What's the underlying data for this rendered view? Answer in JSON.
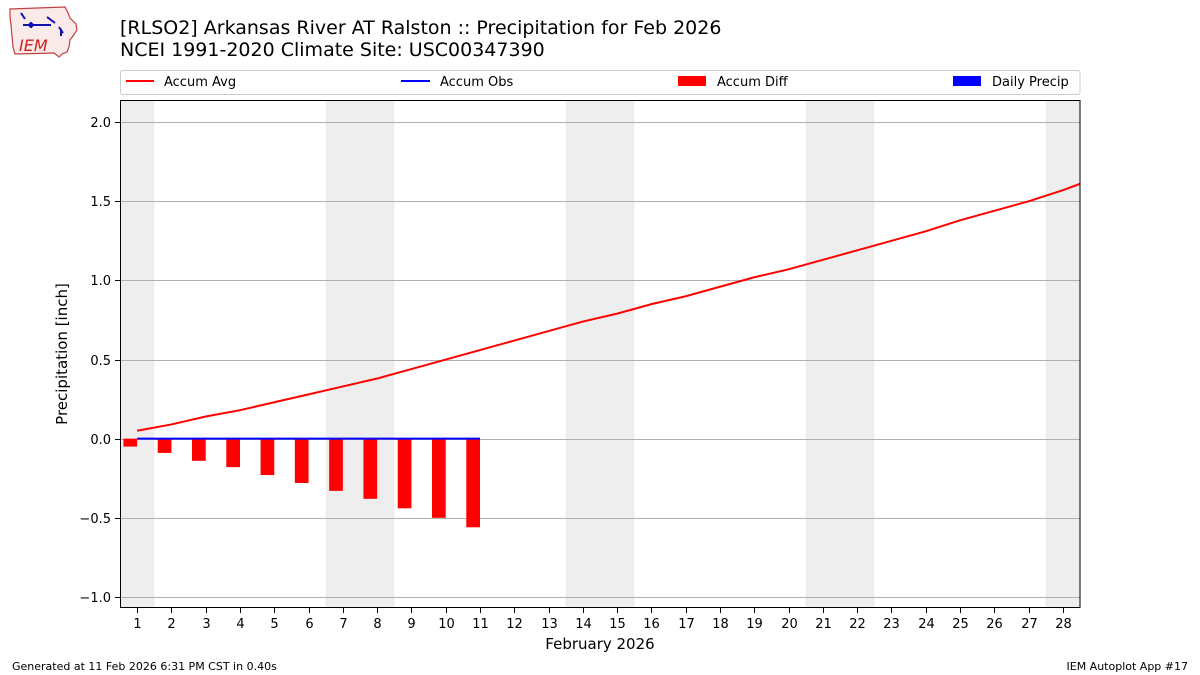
{
  "header": {
    "title_line1": "[RLSO2] Arkansas River  AT Ralston :: Precipitation for Feb 2026",
    "title_line2": "NCEI 1991-2020 Climate Site: USC00347390"
  },
  "logo": {
    "text": "IEM"
  },
  "footer": {
    "generated": "Generated at 11 Feb 2026 6:31 PM CST in 0.40s",
    "app": "IEM Autoplot App #17"
  },
  "colors": {
    "accum_avg": "#ff0000",
    "accum_obs": "#0000ff",
    "accum_diff": "#ff0000",
    "daily_precip": "#0000ff",
    "weekend_shade": "#eeeeee",
    "grid": "#b0b0b0"
  },
  "chart_data": {
    "type": "bar+line",
    "title": "[RLSO2] Arkansas River  AT Ralston :: Precipitation for Feb 2026",
    "subtitle": "NCEI 1991-2020 Climate Site: USC00347390",
    "xlabel": "February 2026",
    "ylabel": "Precipitation [inch]",
    "ylim": [
      -1.07,
      2.14
    ],
    "xlim": [
      0.5,
      28.5
    ],
    "yticks": [
      -1.0,
      -0.5,
      0.0,
      0.5,
      1.0,
      1.5,
      2.0
    ],
    "ytick_labels": [
      "−1.0",
      "−0.5",
      "0.0",
      "0.5",
      "1.0",
      "1.5",
      "2.0"
    ],
    "days": [
      1,
      2,
      3,
      4,
      5,
      6,
      7,
      8,
      9,
      10,
      11,
      12,
      13,
      14,
      15,
      16,
      17,
      18,
      19,
      20,
      21,
      22,
      23,
      24,
      25,
      26,
      27,
      28
    ],
    "weekend_days": [
      1,
      7,
      8,
      14,
      15,
      21,
      22,
      28
    ],
    "grid": "horizontal",
    "legend_position": "top, above plot",
    "legend": [
      {
        "label": "Accum Avg",
        "kind": "line"
      },
      {
        "label": "Accum Obs",
        "kind": "line"
      },
      {
        "label": "Accum Diff",
        "kind": "bar"
      },
      {
        "label": "Daily Precip",
        "kind": "bar"
      }
    ],
    "series": [
      {
        "name": "Accum Avg",
        "type": "line",
        "x": [
          1,
          2,
          3,
          4,
          5,
          6,
          7,
          8,
          9,
          10,
          11,
          12,
          13,
          14,
          15,
          16,
          17,
          18,
          19,
          20,
          21,
          22,
          23,
          24,
          25,
          26,
          27,
          28,
          28.5
        ],
        "values": [
          0.05,
          0.09,
          0.14,
          0.18,
          0.23,
          0.28,
          0.33,
          0.38,
          0.44,
          0.5,
          0.56,
          0.62,
          0.68,
          0.74,
          0.79,
          0.85,
          0.9,
          0.96,
          1.02,
          1.07,
          1.13,
          1.19,
          1.25,
          1.31,
          1.38,
          1.44,
          1.5,
          1.57,
          1.61
        ]
      },
      {
        "name": "Accum Obs",
        "type": "line",
        "x": [
          1,
          2,
          3,
          4,
          5,
          6,
          7,
          8,
          9,
          10,
          11
        ],
        "values": [
          0,
          0,
          0,
          0,
          0,
          0,
          0,
          0,
          0,
          0,
          0
        ]
      },
      {
        "name": "Accum Diff",
        "type": "bar",
        "x": [
          1,
          2,
          3,
          4,
          5,
          6,
          7,
          8,
          9,
          10,
          11
        ],
        "values": [
          -0.05,
          -0.09,
          -0.14,
          -0.18,
          -0.23,
          -0.28,
          -0.33,
          -0.38,
          -0.44,
          -0.5,
          -0.56
        ]
      },
      {
        "name": "Daily Precip",
        "type": "bar",
        "x": [
          1,
          2,
          3,
          4,
          5,
          6,
          7,
          8,
          9,
          10,
          11
        ],
        "values": [
          0,
          0,
          0,
          0,
          0,
          0,
          0,
          0,
          0,
          0,
          0
        ]
      }
    ]
  }
}
